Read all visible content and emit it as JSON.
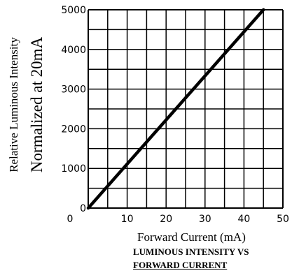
{
  "chart_data": {
    "type": "line",
    "title": "LUMINOUS INTENSITY VS FORWARD CURRENT",
    "title_lines": [
      "LUMINOUS INTENSITY VS",
      "FORWARD CURRENT"
    ],
    "xlabel": "Forward Current (mA)",
    "ylabel_lines": [
      "Relative Luminous Intensity",
      "Normalized at 20mA"
    ],
    "xlim": [
      0,
      50
    ],
    "ylim": [
      0,
      5000
    ],
    "x_ticks": [
      0,
      10,
      20,
      30,
      40,
      50
    ],
    "y_ticks": [
      0,
      1000,
      2000,
      3000,
      4000,
      5000
    ],
    "x_tick_labels": [
      "10",
      "20",
      "30",
      "40",
      "50"
    ],
    "y_tick_labels": [
      "0",
      "1000",
      "2000",
      "3000",
      "4000",
      "5000"
    ],
    "grid": true,
    "series": [
      {
        "x": [
          0,
          45
        ],
        "y": [
          0,
          5000
        ]
      }
    ]
  }
}
